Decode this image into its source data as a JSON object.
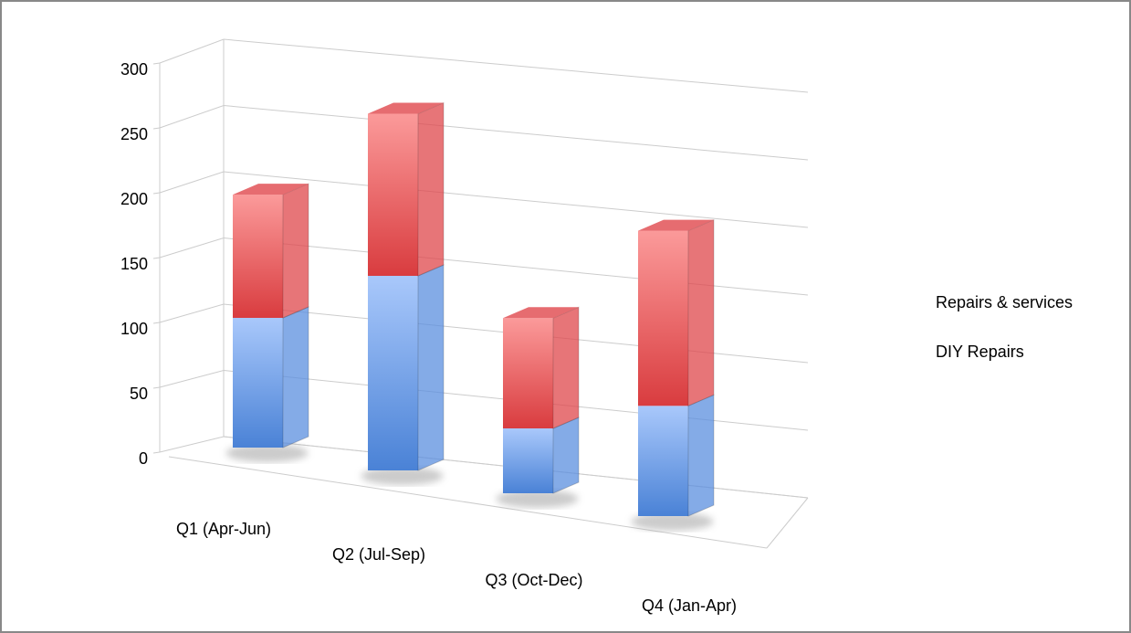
{
  "chart_data": {
    "type": "bar3d_stacked",
    "categories": [
      "Q1 (Apr-Jun)",
      "Q2 (Jul-Sep)",
      "Q3 (Oct-Dec)",
      "Q4 (Jan-Apr)"
    ],
    "series": [
      {
        "name": "DIY Repairs",
        "color": "#5b8fe0",
        "values": [
          100,
          150,
          50,
          85
        ]
      },
      {
        "name": "Repairs & services",
        "color": "#e0474c",
        "values": [
          95,
          125,
          85,
          135
        ]
      }
    ],
    "ylim": [
      0,
      300
    ],
    "yticks": [
      0,
      50,
      100,
      150,
      200,
      250,
      300
    ],
    "grid": true
  }
}
